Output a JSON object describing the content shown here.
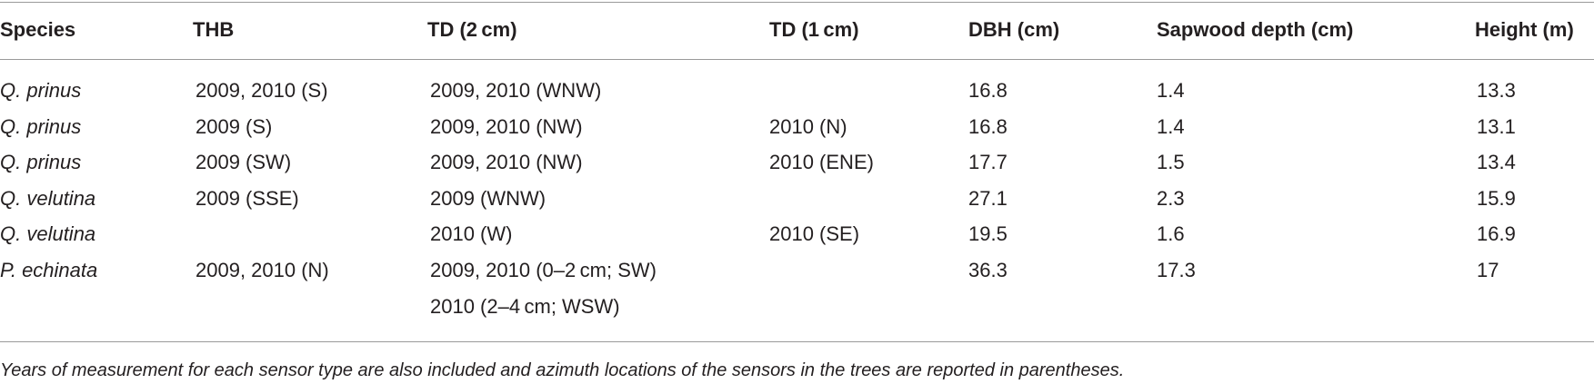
{
  "table": {
    "header": [
      "Species",
      "THB",
      "TD (2 cm)",
      "TD (1 cm)",
      "DBH (cm)",
      "Sapwood depth (cm)",
      "Height (m)"
    ],
    "rows": [
      [
        "Q. prinus",
        "2009, 2010 (S)",
        [
          "2009, 2010 (WNW)"
        ],
        null,
        "16.8",
        "1.4",
        "13.3"
      ],
      [
        "Q. prinus",
        "2009 (S)",
        [
          "2009, 2010 (NW)"
        ],
        "2010 (N)",
        "16.8",
        "1.4",
        "13.1"
      ],
      [
        "Q. prinus",
        "2009 (SW)",
        [
          "2009, 2010 (NW)"
        ],
        "2010 (ENE)",
        "17.7",
        "1.5",
        "13.4"
      ],
      [
        "Q. velutina",
        "2009 (SSE)",
        [
          "2009 (WNW)"
        ],
        null,
        "27.1",
        "2.3",
        "15.9"
      ],
      [
        "Q. velutina",
        null,
        [
          "2010 (W)"
        ],
        "2010 (SE)",
        "19.5",
        "1.6",
        "16.9"
      ],
      [
        "P. echinata",
        "2009, 2010 (N)",
        [
          "2009, 2010 (0–2 cm; SW)",
          "2010 (2–4 cm; WSW)"
        ],
        null,
        "36.3",
        "17.3",
        "17"
      ]
    ],
    "footnote": "Years of measurement for each sensor type are also included and azimuth locations of the sensors in the trees are reported in parentheses."
  }
}
